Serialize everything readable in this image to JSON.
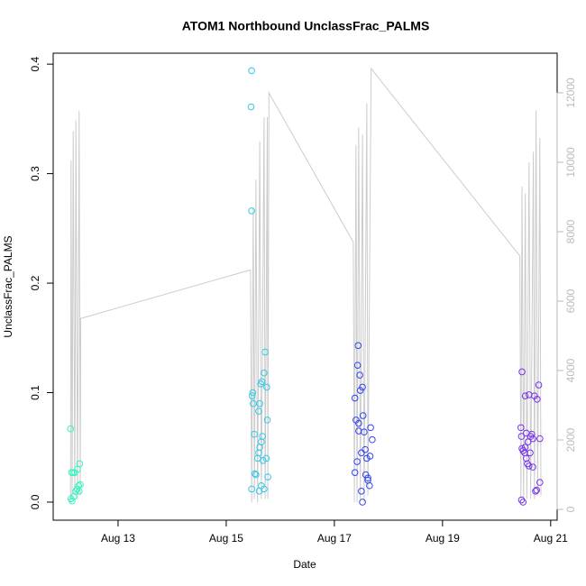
{
  "chart_data": {
    "type": "scatter",
    "title": "ATOM1 Northbound UnclassFrac_PALMS",
    "x_label": "Date",
    "y_label": "UnclassFrac_PALMS",
    "xlim": [
      11.8,
      21.12
    ],
    "xticks": [
      {
        "value": 13,
        "label": "Aug 13"
      },
      {
        "value": 15,
        "label": "Aug 15"
      },
      {
        "value": 17,
        "label": "Aug 17"
      },
      {
        "value": 19,
        "label": "Aug 19"
      },
      {
        "value": 21,
        "label": "Aug 21"
      }
    ],
    "ylim": [
      -0.0165,
      0.41
    ],
    "yticks": [
      {
        "value": 0,
        "label": "0.0"
      },
      0.1,
      0.2,
      0.3,
      0.4
    ],
    "y2lim": [
      -312,
      13143
    ],
    "y2ticks": [
      0,
      2000,
      4000,
      6000,
      8000,
      10000,
      12000
    ],
    "y2color": "#bbbbbb",
    "series": [
      {
        "type": "line",
        "axis": "y2",
        "color": "#cccccc",
        "x": [
          12.12,
          12.13,
          12.15,
          12.17,
          12.2,
          12.22,
          12.25,
          12.28,
          12.3,
          12.31,
          15.45,
          15.47,
          15.5,
          15.52,
          15.55,
          15.58,
          15.62,
          15.65,
          15.7,
          15.72,
          15.76,
          15.77,
          15.79,
          17.35,
          17.37,
          17.4,
          17.42,
          17.45,
          17.48,
          17.52,
          17.55,
          17.6,
          17.62,
          17.68,
          20.43,
          20.45,
          20.47,
          20.5,
          20.53,
          20.56,
          20.6,
          20.63,
          20.68,
          20.7,
          20.73,
          20.76,
          20.8,
          20.82
        ],
        "values": [
          200,
          10050,
          300,
          10900,
          400,
          11200,
          300,
          11480,
          400,
          5500,
          6900,
          200,
          8700,
          300,
          9500,
          200,
          10600,
          300,
          11300,
          300,
          11300,
          300,
          12000,
          7700,
          200,
          10500,
          200,
          11000,
          300,
          10800,
          200,
          11700,
          400,
          12700,
          7300,
          300,
          9300,
          300,
          9100,
          300,
          10000,
          300,
          10300,
          300,
          11500,
          400,
          10700,
          400
        ]
      },
      {
        "color": "#33f5c0",
        "x": [
          12.12,
          12.14,
          12.17,
          12.2,
          12.13,
          12.15,
          12.18,
          12.22,
          12.24,
          12.27,
          12.29,
          12.3,
          12.28,
          12.25
        ],
        "values": [
          0.067,
          0.027,
          0.027,
          0.027,
          0.003,
          0.001,
          0.005,
          0.01,
          0.012,
          0.015,
          0.035,
          0.016,
          0.01,
          0.03
        ]
      },
      {
        "color": "#33c8e8",
        "x": [
          15.47,
          15.46,
          15.47,
          15.49,
          15.48,
          15.5,
          15.52,
          15.53,
          15.55,
          15.47,
          15.58,
          15.6,
          15.6,
          15.62,
          15.64,
          15.66,
          15.62,
          15.65,
          15.67,
          15.68,
          15.65,
          15.7,
          15.72,
          15.7,
          15.75,
          15.76,
          15.77,
          15.74,
          15.61
        ],
        "values": [
          0.394,
          0.361,
          0.266,
          0.1,
          0.097,
          0.09,
          0.062,
          0.026,
          0.025,
          0.012,
          0.04,
          0.045,
          0.083,
          0.09,
          0.108,
          0.11,
          0.05,
          0.055,
          0.06,
          0.038,
          0.015,
          0.012,
          0.137,
          0.118,
          0.105,
          0.075,
          0.023,
          0.04,
          0.01
        ]
      },
      {
        "color": "#3344ee",
        "x": [
          17.44,
          17.43,
          17.47,
          17.48,
          17.52,
          17.38,
          17.4,
          17.45,
          17.53,
          17.45,
          17.55,
          17.42,
          17.5,
          17.57,
          17.6,
          17.38,
          17.58,
          17.62,
          17.65,
          17.5,
          17.52,
          17.67,
          17.7,
          17.66,
          17.62
        ],
        "values": [
          0.143,
          0.125,
          0.116,
          0.102,
          0.105,
          0.095,
          0.075,
          0.072,
          0.079,
          0.065,
          0.064,
          0.037,
          0.045,
          0.048,
          0.04,
          0.027,
          0.025,
          0.02,
          0.015,
          0.01,
          0.0,
          0.068,
          0.057,
          0.042,
          0.022
        ]
      },
      {
        "color": "#7733ee",
        "x": [
          20.47,
          20.45,
          20.46,
          20.47,
          20.49,
          20.52,
          20.46,
          20.49,
          20.53,
          20.6,
          20.55,
          20.58,
          20.53,
          20.55,
          20.57,
          20.63,
          20.65,
          20.67,
          20.62,
          20.6,
          20.67,
          20.7,
          20.75,
          20.78,
          20.8,
          20.8,
          20.74,
          20.72
        ],
        "values": [
          0.119,
          0.068,
          0.06,
          0.049,
          0.047,
          0.045,
          0.002,
          0.0,
          0.097,
          0.098,
          0.063,
          0.055,
          0.05,
          0.04,
          0.035,
          0.06,
          0.062,
          0.058,
          0.045,
          0.033,
          0.032,
          0.097,
          0.094,
          0.107,
          0.058,
          0.018,
          0.011,
          0.01
        ]
      }
    ]
  }
}
